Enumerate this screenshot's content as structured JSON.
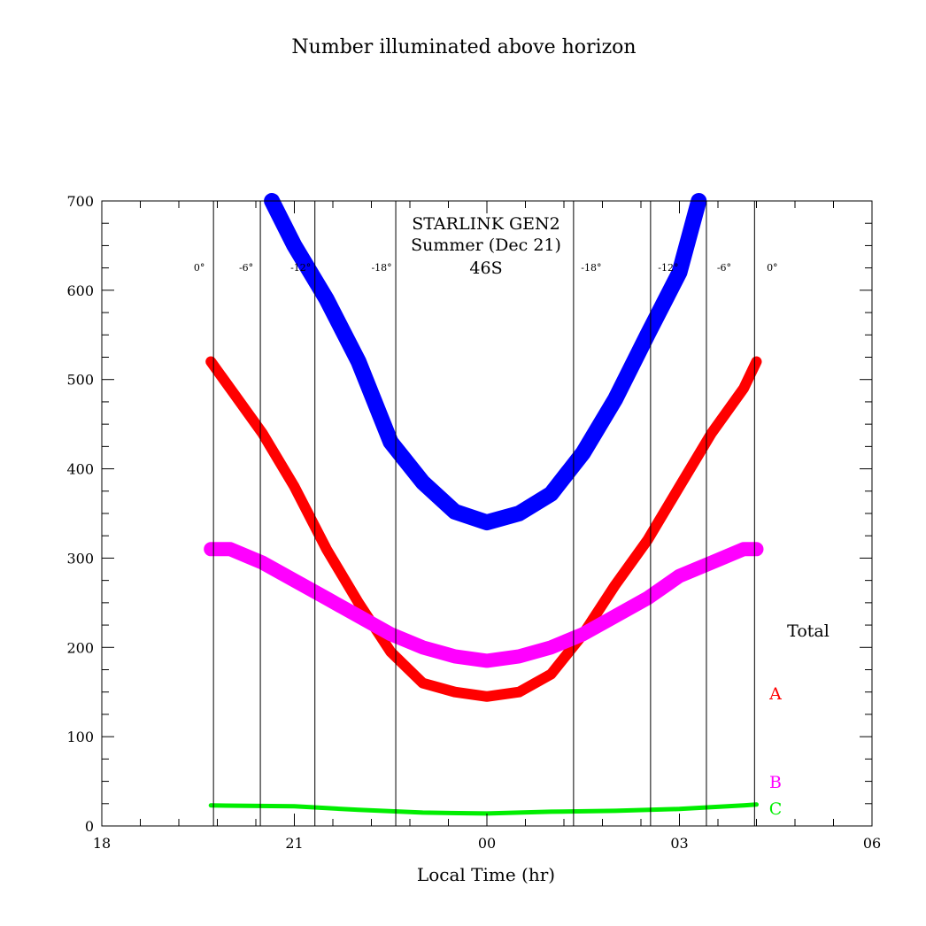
{
  "chart_data": {
    "type": "line",
    "title": "Number illuminated above horizon",
    "annotation": [
      "STARLINK GEN2",
      "Summer (Dec 21)",
      "46S"
    ],
    "xlabel": "Local Time (hr)",
    "ylabel": "",
    "xlim": [
      18,
      30
    ],
    "ylim": [
      0,
      700
    ],
    "x_ticks": [
      {
        "value": 18,
        "label": "18"
      },
      {
        "value": 21,
        "label": "21"
      },
      {
        "value": 24,
        "label": "00"
      },
      {
        "value": 27,
        "label": "03"
      },
      {
        "value": 30,
        "label": "06"
      }
    ],
    "y_ticks": [
      0,
      100,
      200,
      300,
      400,
      500,
      600,
      700
    ],
    "twilight_lines": [
      {
        "x": 19.74,
        "label": "0°"
      },
      {
        "x": 20.47,
        "label": "-6°"
      },
      {
        "x": 21.32,
        "label": "-12°"
      },
      {
        "x": 22.58,
        "label": "-18°"
      },
      {
        "x": 25.35,
        "label": "-18°"
      },
      {
        "x": 26.55,
        "label": "-12°"
      },
      {
        "x": 27.42,
        "label": "-6°"
      },
      {
        "x": 28.17,
        "label": "0°"
      }
    ],
    "series": [
      {
        "name": "Total",
        "color": "#0000ff",
        "width": 18,
        "points": [
          [
            20.65,
            700
          ],
          [
            21,
            650
          ],
          [
            21.5,
            590
          ],
          [
            22,
            520
          ],
          [
            22.5,
            430
          ],
          [
            23,
            385
          ],
          [
            23.5,
            352
          ],
          [
            24,
            340
          ],
          [
            24.5,
            350
          ],
          [
            25,
            372
          ],
          [
            25.5,
            418
          ],
          [
            26,
            478
          ],
          [
            26.5,
            550
          ],
          [
            27,
            620
          ],
          [
            27.3,
            700
          ]
        ]
      },
      {
        "name": "A",
        "color": "#ff0000",
        "width": 12,
        "points": [
          [
            19.7,
            520
          ],
          [
            20,
            490
          ],
          [
            20.5,
            440
          ],
          [
            21,
            380
          ],
          [
            21.5,
            310
          ],
          [
            22,
            250
          ],
          [
            22.5,
            195
          ],
          [
            23,
            160
          ],
          [
            23.5,
            150
          ],
          [
            24,
            145
          ],
          [
            24.5,
            150
          ],
          [
            25,
            170
          ],
          [
            25.5,
            215
          ],
          [
            26,
            270
          ],
          [
            26.5,
            320
          ],
          [
            27,
            380
          ],
          [
            27.5,
            440
          ],
          [
            28,
            490
          ],
          [
            28.2,
            520
          ]
        ]
      },
      {
        "name": "B",
        "color": "#ff00ff",
        "width": 16,
        "points": [
          [
            19.7,
            310
          ],
          [
            20,
            310
          ],
          [
            20.5,
            295
          ],
          [
            21,
            275
          ],
          [
            21.5,
            255
          ],
          [
            22,
            235
          ],
          [
            22.5,
            215
          ],
          [
            23,
            200
          ],
          [
            23.5,
            190
          ],
          [
            24,
            185
          ],
          [
            24.5,
            190
          ],
          [
            25,
            200
          ],
          [
            25.5,
            215
          ],
          [
            26,
            235
          ],
          [
            26.5,
            255
          ],
          [
            27,
            280
          ],
          [
            27.5,
            295
          ],
          [
            28,
            310
          ],
          [
            28.2,
            310
          ]
        ]
      },
      {
        "name": "C",
        "color": "#00ee00",
        "width": 5,
        "points": [
          [
            19.7,
            23
          ],
          [
            21,
            22
          ],
          [
            22,
            18
          ],
          [
            23,
            15
          ],
          [
            24,
            14
          ],
          [
            25,
            16
          ],
          [
            26,
            17
          ],
          [
            27,
            19
          ],
          [
            28,
            23
          ],
          [
            28.2,
            24
          ]
        ]
      }
    ],
    "legend": "right"
  }
}
